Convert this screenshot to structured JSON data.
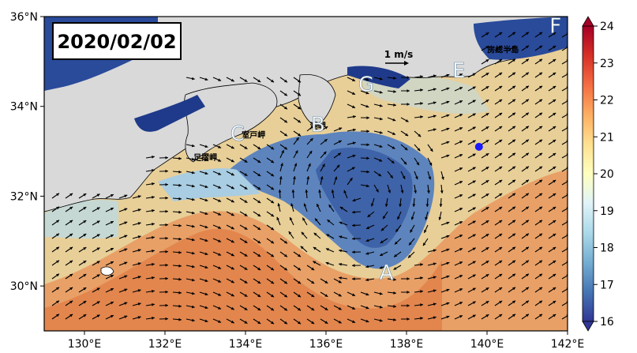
{
  "chart_data": {
    "type": "heatmap",
    "title": "2020/02/02",
    "colormap": "RdYlBu_r",
    "colorbar": {
      "min": 16,
      "max": 24,
      "ticks": [
        "16",
        "17",
        "18",
        "19",
        "20",
        "21",
        "22",
        "23",
        "24"
      ],
      "extend": "both"
    },
    "x_axis": {
      "range": [
        129,
        142
      ],
      "tick_labels": [
        "130°E",
        "132°E",
        "134°E",
        "136°E",
        "138°E",
        "140°E",
        "142°E"
      ],
      "tick_values": [
        130,
        132,
        134,
        136,
        138,
        140,
        142
      ]
    },
    "y_axis": {
      "range": [
        29,
        36
      ],
      "tick_labels": [
        "30°N",
        "32°N",
        "34°N",
        "36°N"
      ],
      "tick_values": [
        30,
        32,
        34,
        36
      ]
    },
    "velocity_reference": {
      "label": "1 m/s"
    },
    "point_labels": [
      {
        "name": "A",
        "lon": 137.5,
        "lat": 30.3
      },
      {
        "name": "B",
        "lon": 135.8,
        "lat": 33.6
      },
      {
        "name": "C",
        "lon": 133.8,
        "lat": 33.4
      },
      {
        "name": "E",
        "lon": 139.3,
        "lat": 34.8
      },
      {
        "name": "F",
        "lon": 141.7,
        "lat": 35.8
      },
      {
        "name": "G",
        "lon": 137.0,
        "lat": 34.5
      }
    ],
    "place_names": [
      {
        "name": "室戸岬",
        "lon": 134.2,
        "lat": 33.3
      },
      {
        "name": "潮岬",
        "lon": 135.8,
        "lat": 33.5
      },
      {
        "name": "足摺岬",
        "lon": 133.0,
        "lat": 32.8
      },
      {
        "name": "房総半島",
        "lon": 140.4,
        "lat": 35.2
      }
    ],
    "marker": {
      "lon": 139.8,
      "lat": 33.1,
      "color": "#1a1aff"
    },
    "land_color": "#d9d9d9",
    "grid": false
  }
}
